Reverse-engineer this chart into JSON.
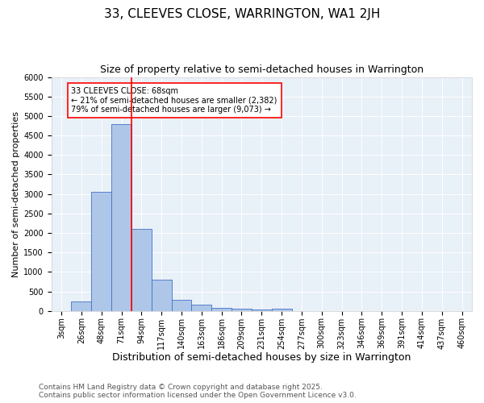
{
  "title": "33, CLEEVES CLOSE, WARRINGTON, WA1 2JH",
  "subtitle": "Size of property relative to semi-detached houses in Warrington",
  "xlabel": "Distribution of semi-detached houses by size in Warrington",
  "ylabel": "Number of semi-detached properties",
  "categories": [
    "3sqm",
    "26sqm",
    "48sqm",
    "71sqm",
    "94sqm",
    "117sqm",
    "140sqm",
    "163sqm",
    "186sqm",
    "209sqm",
    "231sqm",
    "254sqm",
    "277sqm",
    "300sqm",
    "323sqm",
    "346sqm",
    "369sqm",
    "391sqm",
    "414sqm",
    "437sqm",
    "460sqm"
  ],
  "values": [
    0,
    250,
    3050,
    4800,
    2100,
    800,
    290,
    150,
    80,
    50,
    30,
    50,
    0,
    0,
    0,
    0,
    0,
    0,
    0,
    0,
    0
  ],
  "bar_color": "#aec6e8",
  "bar_edgecolor": "#4472c4",
  "vline_pos": 3.5,
  "vline_color": "red",
  "ylim": [
    0,
    6000
  ],
  "yticks": [
    0,
    500,
    1000,
    1500,
    2000,
    2500,
    3000,
    3500,
    4000,
    4500,
    5000,
    5500,
    6000
  ],
  "annotation_title": "33 CLEEVES CLOSE: 68sqm",
  "annotation_line1": "← 21% of semi-detached houses are smaller (2,382)",
  "annotation_line2": "79% of semi-detached houses are larger (9,073) →",
  "annotation_box_color": "red",
  "footnote1": "Contains HM Land Registry data © Crown copyright and database right 2025.",
  "footnote2": "Contains public sector information licensed under the Open Government Licence v3.0.",
  "bg_color": "#e8f0f8",
  "fig_bg_color": "#ffffff",
  "title_fontsize": 11,
  "subtitle_fontsize": 9,
  "xlabel_fontsize": 9,
  "ylabel_fontsize": 8,
  "tick_fontsize": 7,
  "annotation_fontsize": 7,
  "footnote_fontsize": 6.5
}
